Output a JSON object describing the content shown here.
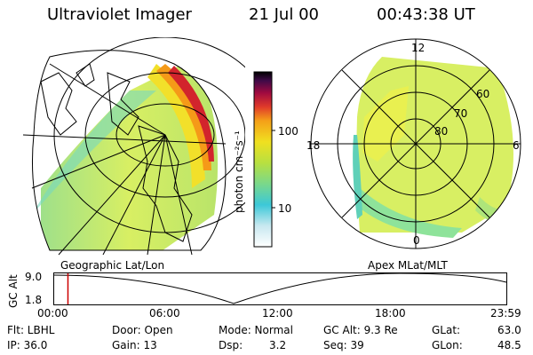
{
  "header": {
    "title": "Ultraviolet Imager",
    "date": "21 Jul 00",
    "time": "00:43:38 UT"
  },
  "colorbar": {
    "unit_label": "photon cm⁻²s⁻¹",
    "ticks": [
      "100",
      "10"
    ],
    "scale": "log"
  },
  "map_left": {
    "label": "Geographic Lat/Lon"
  },
  "map_right": {
    "label": "Apex MLat/MLT",
    "mlt_labels": [
      "12",
      "18",
      "6",
      "0"
    ],
    "lat_labels": [
      "60",
      "70",
      "80"
    ]
  },
  "timeline": {
    "ylabel": "GC Alt",
    "yticks": [
      "9.0",
      "1.8"
    ],
    "xticks": [
      "00:00",
      "06:00",
      "12:00",
      "18:00",
      "23:59"
    ],
    "marker_time_hours": 0.73,
    "marker_color": "#cc0000"
  },
  "info": {
    "flt": "Flt: LBHL",
    "ip": "IP: 36.0",
    "door": "Door: Open",
    "gain": "Gain: 13",
    "mode": "Mode: Normal",
    "dsp_label": "Dsp:",
    "dsp_value": "3.2",
    "gcalt": "GC Alt: 9.3 Re",
    "seq": "Seq: 39",
    "glat_label": "GLat:",
    "glat_value": "63.0",
    "glon_label": "GLon:",
    "glon_value": "48.5"
  }
}
